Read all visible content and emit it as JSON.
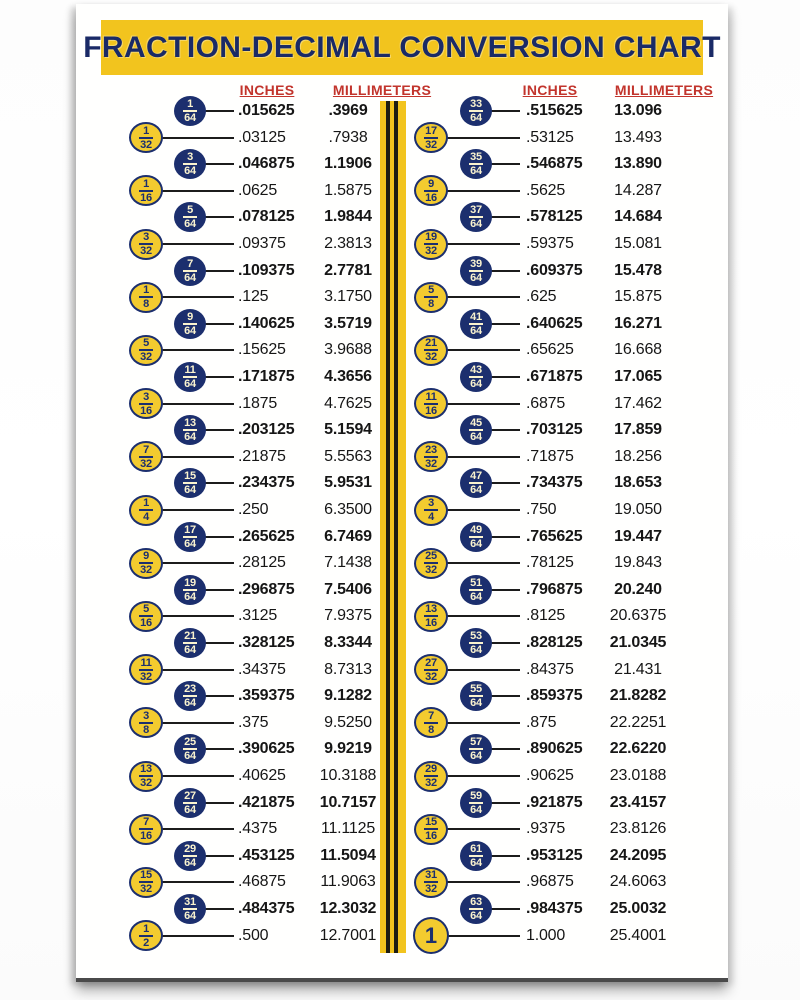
{
  "poster": {
    "title": "FRACTION-DECIMAL CONVERSION CHART",
    "column_headers": {
      "inches": "INCHES",
      "millimeters": "MILLIMETERS"
    },
    "colors": {
      "gold": "#F2C41E",
      "navy": "#1C2F6E",
      "header_red": "#C2342C",
      "value_text": "#161616",
      "blue_circle_text": "#FAF3CF",
      "poster_bg": "#FFFFFE"
    },
    "left_rows": [
      {
        "num": "1",
        "den": "64",
        "circle": "blue",
        "inches": ".015625",
        "mm": ".3969"
      },
      {
        "num": "1",
        "den": "32",
        "circle": "yellow",
        "inches": ".03125",
        "mm": ".7938"
      },
      {
        "num": "3",
        "den": "64",
        "circle": "blue",
        "inches": ".046875",
        "mm": "1.1906"
      },
      {
        "num": "1",
        "den": "16",
        "circle": "yellow",
        "inches": ".0625",
        "mm": "1.5875"
      },
      {
        "num": "5",
        "den": "64",
        "circle": "blue",
        "inches": ".078125",
        "mm": "1.9844"
      },
      {
        "num": "3",
        "den": "32",
        "circle": "yellow",
        "inches": ".09375",
        "mm": "2.3813"
      },
      {
        "num": "7",
        "den": "64",
        "circle": "blue",
        "inches": ".109375",
        "mm": "2.7781"
      },
      {
        "num": "1",
        "den": "8",
        "circle": "yellow",
        "inches": ".125",
        "mm": "3.1750"
      },
      {
        "num": "9",
        "den": "64",
        "circle": "blue",
        "inches": ".140625",
        "mm": "3.5719"
      },
      {
        "num": "5",
        "den": "32",
        "circle": "yellow",
        "inches": ".15625",
        "mm": "3.9688"
      },
      {
        "num": "11",
        "den": "64",
        "circle": "blue",
        "inches": ".171875",
        "mm": "4.3656"
      },
      {
        "num": "3",
        "den": "16",
        "circle": "yellow",
        "inches": ".1875",
        "mm": "4.7625"
      },
      {
        "num": "13",
        "den": "64",
        "circle": "blue",
        "inches": ".203125",
        "mm": "5.1594"
      },
      {
        "num": "7",
        "den": "32",
        "circle": "yellow",
        "inches": ".21875",
        "mm": "5.5563"
      },
      {
        "num": "15",
        "den": "64",
        "circle": "blue",
        "inches": ".234375",
        "mm": "5.9531"
      },
      {
        "num": "1",
        "den": "4",
        "circle": "yellow",
        "inches": ".250",
        "mm": "6.3500"
      },
      {
        "num": "17",
        "den": "64",
        "circle": "blue",
        "inches": ".265625",
        "mm": "6.7469"
      },
      {
        "num": "9",
        "den": "32",
        "circle": "yellow",
        "inches": ".28125",
        "mm": "7.1438"
      },
      {
        "num": "19",
        "den": "64",
        "circle": "blue",
        "inches": ".296875",
        "mm": "7.5406"
      },
      {
        "num": "5",
        "den": "16",
        "circle": "yellow",
        "inches": ".3125",
        "mm": "7.9375"
      },
      {
        "num": "21",
        "den": "64",
        "circle": "blue",
        "inches": ".328125",
        "mm": "8.3344"
      },
      {
        "num": "11",
        "den": "32",
        "circle": "yellow",
        "inches": ".34375",
        "mm": "8.7313"
      },
      {
        "num": "23",
        "den": "64",
        "circle": "blue",
        "inches": ".359375",
        "mm": "9.1282"
      },
      {
        "num": "3",
        "den": "8",
        "circle": "yellow",
        "inches": ".375",
        "mm": "9.5250"
      },
      {
        "num": "25",
        "den": "64",
        "circle": "blue",
        "inches": ".390625",
        "mm": "9.9219"
      },
      {
        "num": "13",
        "den": "32",
        "circle": "yellow",
        "inches": ".40625",
        "mm": "10.3188"
      },
      {
        "num": "27",
        "den": "64",
        "circle": "blue",
        "inches": ".421875",
        "mm": "10.7157"
      },
      {
        "num": "7",
        "den": "16",
        "circle": "yellow",
        "inches": ".4375",
        "mm": "11.1125"
      },
      {
        "num": "29",
        "den": "64",
        "circle": "blue",
        "inches": ".453125",
        "mm": "11.5094"
      },
      {
        "num": "15",
        "den": "32",
        "circle": "yellow",
        "inches": ".46875",
        "mm": "11.9063"
      },
      {
        "num": "31",
        "den": "64",
        "circle": "blue",
        "inches": ".484375",
        "mm": "12.3032"
      },
      {
        "num": "1",
        "den": "2",
        "circle": "yellow",
        "inches": ".500",
        "mm": "12.7001"
      }
    ],
    "right_rows": [
      {
        "num": "33",
        "den": "64",
        "circle": "blue",
        "inches": ".515625",
        "mm": "13.096"
      },
      {
        "num": "17",
        "den": "32",
        "circle": "yellow",
        "inches": ".53125",
        "mm": "13.493"
      },
      {
        "num": "35",
        "den": "64",
        "circle": "blue",
        "inches": ".546875",
        "mm": "13.890"
      },
      {
        "num": "9",
        "den": "16",
        "circle": "yellow",
        "inches": ".5625",
        "mm": "14.287"
      },
      {
        "num": "37",
        "den": "64",
        "circle": "blue",
        "inches": ".578125",
        "mm": "14.684"
      },
      {
        "num": "19",
        "den": "32",
        "circle": "yellow",
        "inches": ".59375",
        "mm": "15.081"
      },
      {
        "num": "39",
        "den": "64",
        "circle": "blue",
        "inches": ".609375",
        "mm": "15.478"
      },
      {
        "num": "5",
        "den": "8",
        "circle": "yellow",
        "inches": ".625",
        "mm": "15.875"
      },
      {
        "num": "41",
        "den": "64",
        "circle": "blue",
        "inches": ".640625",
        "mm": "16.271"
      },
      {
        "num": "21",
        "den": "32",
        "circle": "yellow",
        "inches": ".65625",
        "mm": "16.668"
      },
      {
        "num": "43",
        "den": "64",
        "circle": "blue",
        "inches": ".671875",
        "mm": "17.065"
      },
      {
        "num": "11",
        "den": "16",
        "circle": "yellow",
        "inches": ".6875",
        "mm": "17.462"
      },
      {
        "num": "45",
        "den": "64",
        "circle": "blue",
        "inches": ".703125",
        "mm": "17.859"
      },
      {
        "num": "23",
        "den": "32",
        "circle": "yellow",
        "inches": ".71875",
        "mm": "18.256"
      },
      {
        "num": "47",
        "den": "64",
        "circle": "blue",
        "inches": ".734375",
        "mm": "18.653"
      },
      {
        "num": "3",
        "den": "4",
        "circle": "yellow",
        "inches": ".750",
        "mm": "19.050"
      },
      {
        "num": "49",
        "den": "64",
        "circle": "blue",
        "inches": ".765625",
        "mm": "19.447"
      },
      {
        "num": "25",
        "den": "32",
        "circle": "yellow",
        "inches": ".78125",
        "mm": "19.843"
      },
      {
        "num": "51",
        "den": "64",
        "circle": "blue",
        "inches": ".796875",
        "mm": "20.240"
      },
      {
        "num": "13",
        "den": "16",
        "circle": "yellow",
        "inches": ".8125",
        "mm": "20.6375"
      },
      {
        "num": "53",
        "den": "64",
        "circle": "blue",
        "inches": ".828125",
        "mm": "21.0345"
      },
      {
        "num": "27",
        "den": "32",
        "circle": "yellow",
        "inches": ".84375",
        "mm": "21.431"
      },
      {
        "num": "55",
        "den": "64",
        "circle": "blue",
        "inches": ".859375",
        "mm": "21.8282"
      },
      {
        "num": "7",
        "den": "8",
        "circle": "yellow",
        "inches": ".875",
        "mm": "22.2251"
      },
      {
        "num": "57",
        "den": "64",
        "circle": "blue",
        "inches": ".890625",
        "mm": "22.6220"
      },
      {
        "num": "29",
        "den": "32",
        "circle": "yellow",
        "inches": ".90625",
        "mm": "23.0188"
      },
      {
        "num": "59",
        "den": "64",
        "circle": "blue",
        "inches": ".921875",
        "mm": "23.4157"
      },
      {
        "num": "15",
        "den": "16",
        "circle": "yellow",
        "inches": ".9375",
        "mm": "23.8126"
      },
      {
        "num": "61",
        "den": "64",
        "circle": "blue",
        "inches": ".953125",
        "mm": "24.2095"
      },
      {
        "num": "31",
        "den": "32",
        "circle": "yellow",
        "inches": ".96875",
        "mm": "24.6063"
      },
      {
        "num": "63",
        "den": "64",
        "circle": "blue",
        "inches": ".984375",
        "mm": "25.0032"
      },
      {
        "num": "1",
        "den": "",
        "circle": "yellow",
        "inches": "1.000",
        "mm": "25.4001"
      }
    ]
  }
}
